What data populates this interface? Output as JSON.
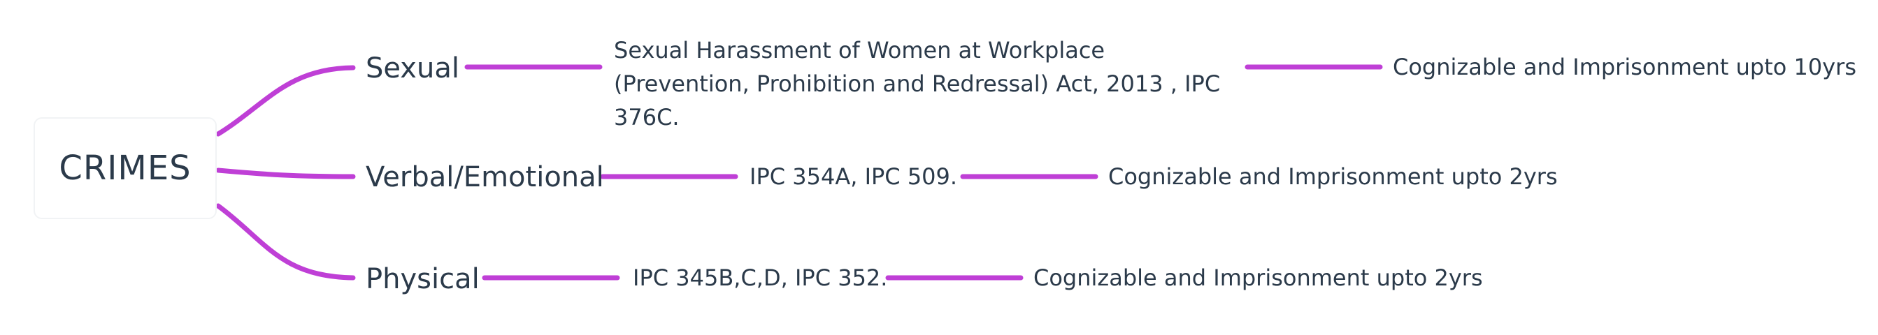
{
  "root": {
    "label": "CRIMES"
  },
  "branches": [
    {
      "category": "Sexual",
      "law": "Sexual Harassment of Women at Workplace (Prevention, Prohibition and Redressal) Act, 2013 , IPC 376C.",
      "penalty": "Cognizable and Imprisonment upto 10yrs"
    },
    {
      "category": "Verbal/Emotional",
      "law": "IPC 354A, IPC 509.",
      "penalty": "Cognizable and Imprisonment upto 2yrs"
    },
    {
      "category": "Physical",
      "law": "IPC 345B,C,D, IPC 352.",
      "penalty": "Cognizable and Imprisonment upto 2yrs"
    }
  ],
  "colors": {
    "connector": "#bf3fd6",
    "text": "#2b3a4a",
    "root_border": "#f1f3f5"
  }
}
